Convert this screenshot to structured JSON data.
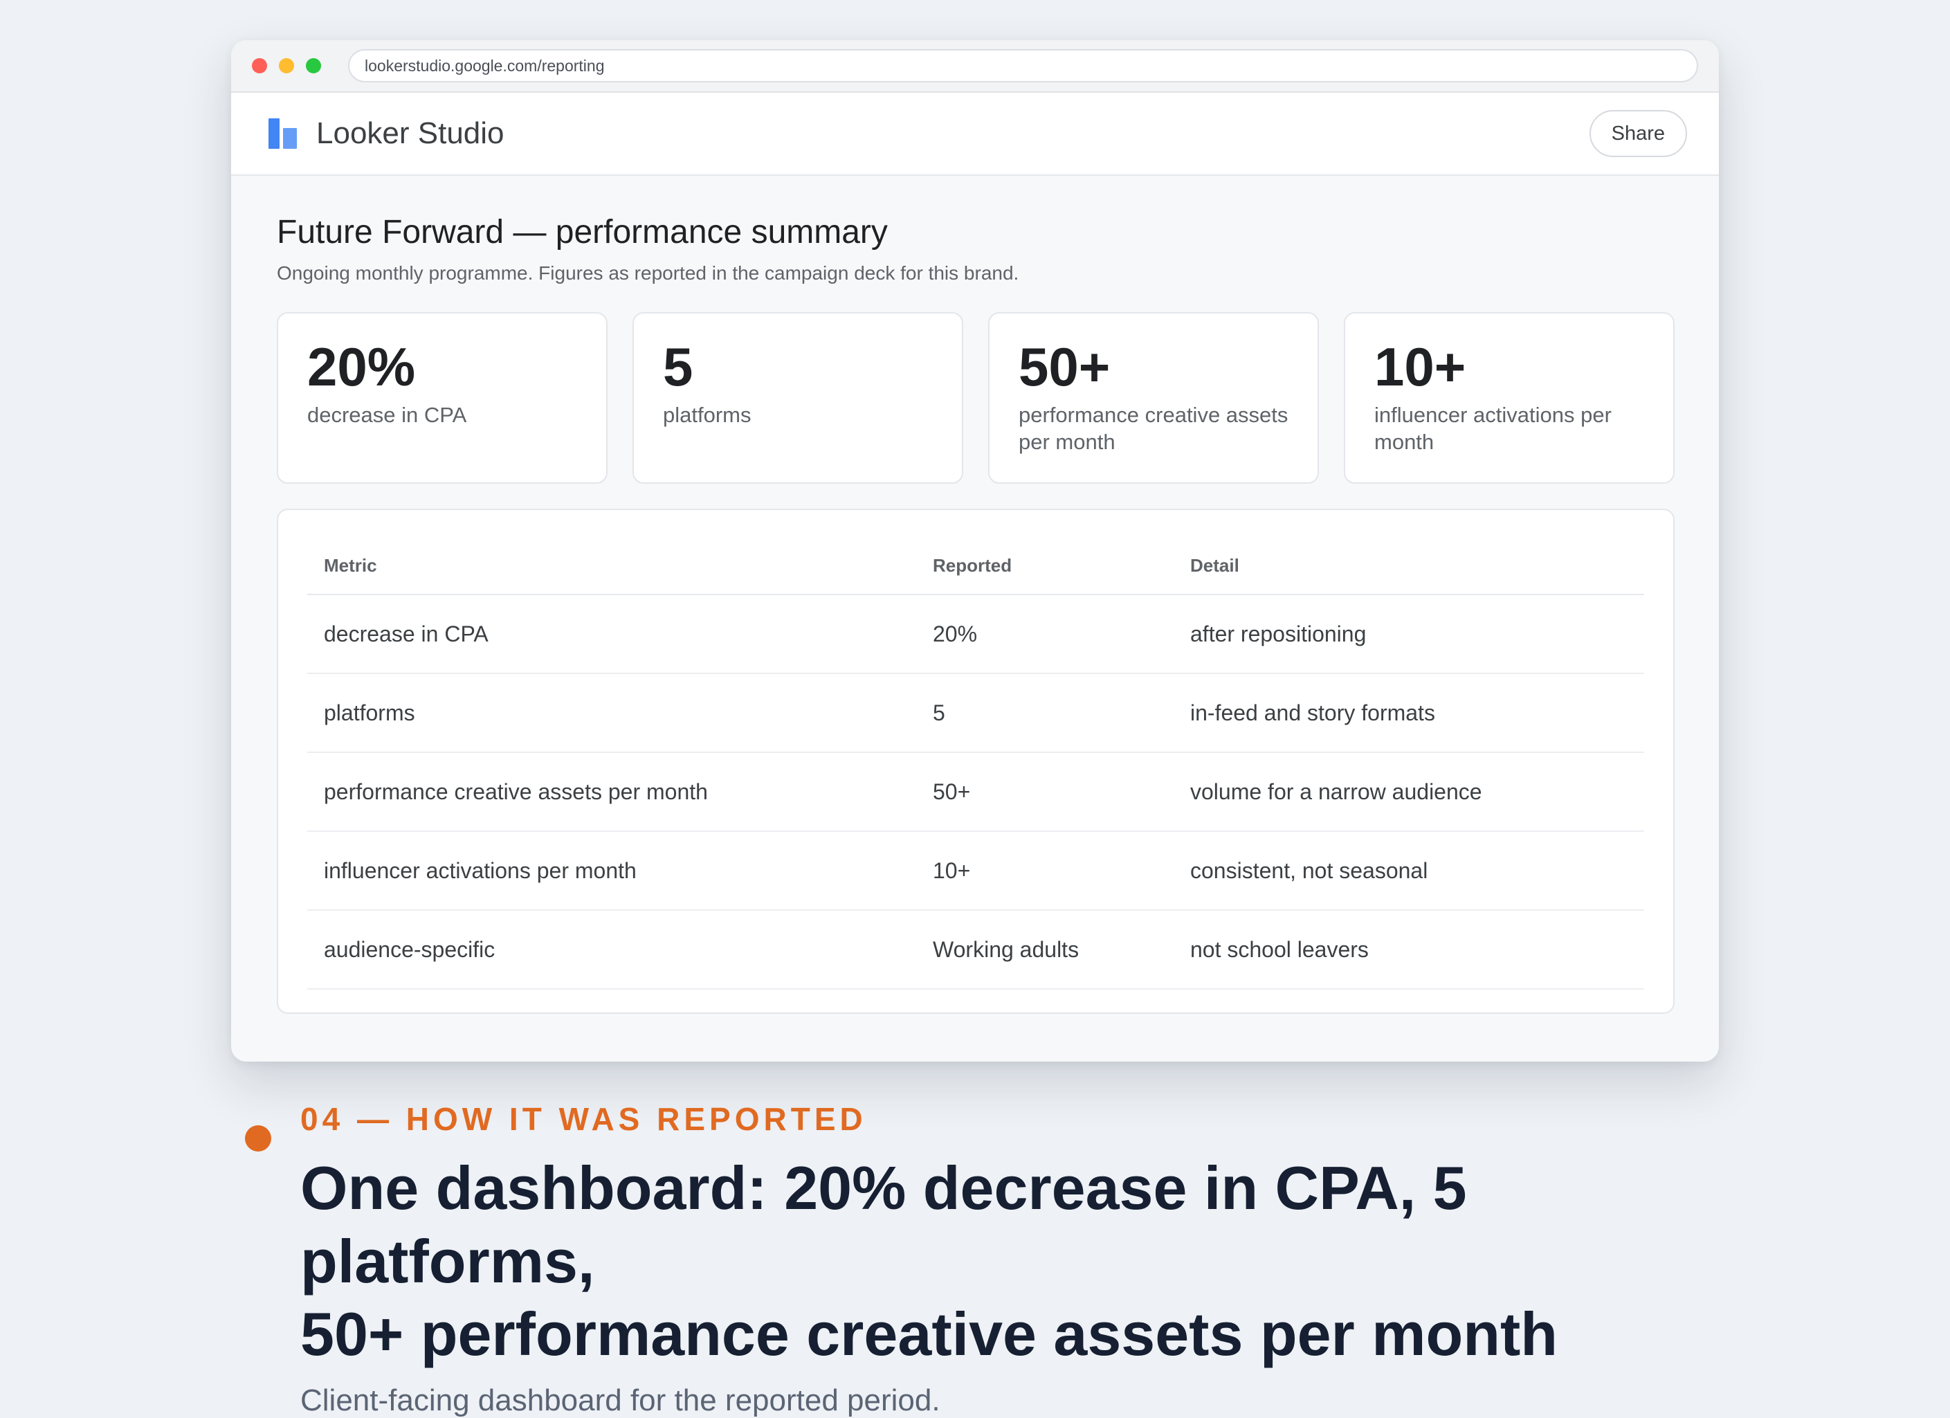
{
  "browser": {
    "url": "lookerstudio.google.com/reporting"
  },
  "app": {
    "title": "Looker Studio",
    "share_label": "Share",
    "logo_icon": "looker-studio-logo-icon"
  },
  "report": {
    "title": "Future Forward — performance summary",
    "subtitle": "Ongoing monthly programme. Figures as reported in the campaign deck for this brand."
  },
  "cards": [
    {
      "value": "20%",
      "label": "decrease in CPA"
    },
    {
      "value": "5",
      "label": "platforms"
    },
    {
      "value": "50+",
      "label": "performance creative assets per month"
    },
    {
      "value": "10+",
      "label": "influencer activations per month"
    }
  ],
  "table": {
    "headers": [
      "Metric",
      "Reported",
      "Detail"
    ],
    "rows": [
      [
        "decrease in CPA",
        "20%",
        "after repositioning"
      ],
      [
        "platforms",
        "5",
        "in-feed and story formats"
      ],
      [
        "performance creative assets per month",
        "50+",
        "volume for a narrow audience"
      ],
      [
        "influencer activations per month",
        "10+",
        "consistent, not seasonal"
      ],
      [
        "audience-specific",
        "Working adults",
        "not school leavers"
      ]
    ]
  },
  "caption": {
    "eyebrow": "04 — HOW IT WAS REPORTED",
    "headline_line1": "One dashboard: 20% decrease in CPA, 5 platforms,",
    "headline_line2": "50+ performance creative assets per month",
    "sub": "Client-facing dashboard for the reported period."
  },
  "colors": {
    "accent": "#e06a21",
    "brand_blue": "#4285f4",
    "headline": "#162032"
  }
}
